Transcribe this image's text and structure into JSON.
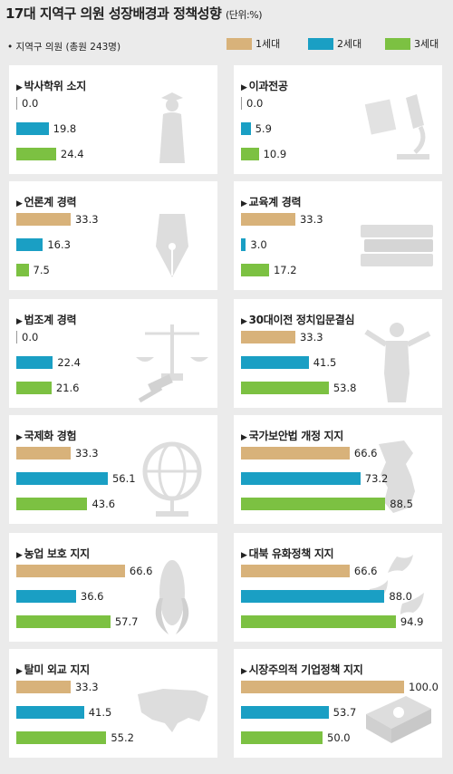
{
  "title": "17대 지역구 의원 성장배경과 정책성향",
  "unit": "(단위:%)",
  "subtitle": "• 지역구 의원 (총원 243명)",
  "colors": {
    "gen1": "#d8b27a",
    "gen2": "#1a9fc4",
    "gen3": "#7cc142",
    "panel": "#ffffff",
    "background": "#ebebeb"
  },
  "chart_data": {
    "type": "bar",
    "orientation": "horizontal",
    "title": "17대 지역구 의원 성장배경과 정책성향",
    "unit": "%",
    "legend": [
      "1세대",
      "2세대",
      "3세대"
    ],
    "legend_position": "top-right",
    "xlim": [
      0,
      100
    ],
    "panels": [
      {
        "title": "박사학위 소지",
        "icon": "graduate-icon",
        "values": [
          "0.0",
          "19.8",
          "24.4"
        ]
      },
      {
        "title": "이과전공",
        "icon": "microscope-icon",
        "values": [
          "0.0",
          "5.9",
          "10.9"
        ]
      },
      {
        "title": "언론계 경력",
        "icon": "pen-nib-icon",
        "values": [
          "33.3",
          "16.3",
          "7.5"
        ]
      },
      {
        "title": "교육계 경력",
        "icon": "books-icon",
        "values": [
          "33.3",
          "3.0",
          "17.2"
        ]
      },
      {
        "title": "법조계 경력",
        "icon": "scales-icon",
        "values": [
          "0.0",
          "22.4",
          "21.6"
        ]
      },
      {
        "title": "30대이전 정치입문결심",
        "icon": "speaker-icon",
        "values": [
          "33.3",
          "41.5",
          "53.8"
        ]
      },
      {
        "title": "국제화 경험",
        "icon": "globe-icon",
        "values": [
          "33.3",
          "56.1",
          "43.6"
        ]
      },
      {
        "title": "국가보안법 개정 지지",
        "icon": "korea-map-icon",
        "values": [
          "66.6",
          "73.2",
          "88.5"
        ]
      },
      {
        "title": "농업 보호 지지",
        "icon": "corn-icon",
        "values": [
          "66.6",
          "36.6",
          "57.7"
        ]
      },
      {
        "title": "대북 유화정책 지지",
        "icon": "doves-icon",
        "values": [
          "66.6",
          "88.0",
          "94.9"
        ]
      },
      {
        "title": "탈미 외교 지지",
        "icon": "usa-map-icon",
        "values": [
          "33.3",
          "41.5",
          "55.2"
        ]
      },
      {
        "title": "시장주의적 기업정책 지지",
        "icon": "money-stack-icon",
        "values": [
          "100.0",
          "53.7",
          "50.0"
        ]
      }
    ]
  }
}
